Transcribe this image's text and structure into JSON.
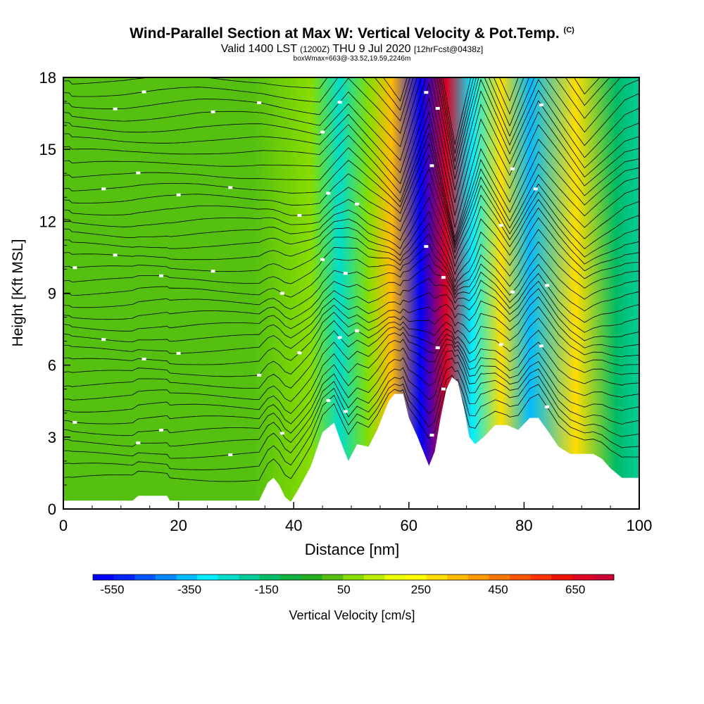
{
  "header": {
    "title": "Wind-Parallel Section at Max W: Vertical Velocity & Pot.Temp.",
    "title_mark": "(C)",
    "subtitle_pre": "Valid 1400 LST",
    "subtitle_utc": "(1200Z)",
    "subtitle_mid": "THU 9 Jul 2020",
    "subtitle_fcst": "[12hrFcst@0438z]",
    "boxline": "boxWmax=663@-33.52,19.59,2246m"
  },
  "chart_data": {
    "type": "heatmap",
    "title": "Wind-Parallel Section at Max W: Vertical Velocity & Pot.Temp.",
    "xlabel": "Distance [nm]",
    "ylabel": "Height [Kft MSL]",
    "xlim": [
      0,
      100
    ],
    "ylim": [
      0,
      18
    ],
    "x_ticks": [
      "0",
      "20",
      "40",
      "60",
      "80",
      "100"
    ],
    "y_ticks": [
      "0",
      "3",
      "6",
      "9",
      "12",
      "15",
      "18"
    ],
    "colorbar": {
      "label": "Vertical Velocity [cm/s]",
      "tick_labels": [
        "-550",
        "-350",
        "-150",
        "50",
        "250",
        "450",
        "650"
      ],
      "min": -600,
      "max": 750,
      "colors": [
        "#0000ff",
        "#0022ff",
        "#0055ff",
        "#0088ff",
        "#00bbff",
        "#00eeff",
        "#00ddcc",
        "#00cc99",
        "#00bb66",
        "#11b140",
        "#22b020",
        "#55c010",
        "#88dd00",
        "#bbee00",
        "#eeff00",
        "#ffff00",
        "#ffdd00",
        "#ffbb00",
        "#ff9900",
        "#ff7700",
        "#ff5500",
        "#ff3300",
        "#ee1100",
        "#dd0022",
        "#cc0033"
      ]
    },
    "vertical_velocity_bands": [
      {
        "x": 0,
        "w": 30
      },
      {
        "x": 9,
        "w": 40
      },
      {
        "x": 22,
        "w": 10
      },
      {
        "x": 33,
        "w": 20
      },
      {
        "x": 43,
        "w": 90
      },
      {
        "x": 48,
        "w": -240
      },
      {
        "x": 53,
        "w": 60
      },
      {
        "x": 57,
        "w": 320
      },
      {
        "x": 62,
        "w": -560
      },
      {
        "x": 66.5,
        "w": 663
      },
      {
        "x": 71,
        "w": -300
      },
      {
        "x": 76,
        "w": 300
      },
      {
        "x": 81,
        "w": -350
      },
      {
        "x": 89,
        "w": 280
      },
      {
        "x": 96,
        "w": -120
      },
      {
        "x": 100,
        "w": -200
      }
    ],
    "terrain": [
      {
        "x": 0,
        "kft": 0.35
      },
      {
        "x": 12,
        "kft": 0.35
      },
      {
        "x": 13,
        "kft": 0.55
      },
      {
        "x": 18,
        "kft": 0.55
      },
      {
        "x": 18.5,
        "kft": 0.35
      },
      {
        "x": 34,
        "kft": 0.35
      },
      {
        "x": 35.5,
        "kft": 1.1
      },
      {
        "x": 36.5,
        "kft": 1.3
      },
      {
        "x": 37.5,
        "kft": 1.0
      },
      {
        "x": 38.5,
        "kft": 0.5
      },
      {
        "x": 39.5,
        "kft": 0.3
      },
      {
        "x": 41,
        "kft": 0.9
      },
      {
        "x": 43,
        "kft": 1.8
      },
      {
        "x": 45,
        "kft": 3.2
      },
      {
        "x": 47,
        "kft": 3.6
      },
      {
        "x": 48.5,
        "kft": 2.6
      },
      {
        "x": 49.5,
        "kft": 2.0
      },
      {
        "x": 51,
        "kft": 2.7
      },
      {
        "x": 53,
        "kft": 2.6
      },
      {
        "x": 54.5,
        "kft": 3.3
      },
      {
        "x": 56.5,
        "kft": 4.5
      },
      {
        "x": 57.5,
        "kft": 4.8
      },
      {
        "x": 59,
        "kft": 4.8
      },
      {
        "x": 60,
        "kft": 3.8
      },
      {
        "x": 61.5,
        "kft": 3.0
      },
      {
        "x": 62.5,
        "kft": 2.4
      },
      {
        "x": 63.5,
        "kft": 1.8
      },
      {
        "x": 64.5,
        "kft": 2.4
      },
      {
        "x": 65.5,
        "kft": 3.8
      },
      {
        "x": 66.5,
        "kft": 5.0
      },
      {
        "x": 67.5,
        "kft": 5.5
      },
      {
        "x": 68.5,
        "kft": 5.3
      },
      {
        "x": 69.5,
        "kft": 4.3
      },
      {
        "x": 70.5,
        "kft": 3.0
      },
      {
        "x": 71.5,
        "kft": 2.7
      },
      {
        "x": 73,
        "kft": 3.0
      },
      {
        "x": 75,
        "kft": 3.5
      },
      {
        "x": 77,
        "kft": 3.5
      },
      {
        "x": 79,
        "kft": 3.3
      },
      {
        "x": 81,
        "kft": 3.8
      },
      {
        "x": 82.5,
        "kft": 3.8
      },
      {
        "x": 84,
        "kft": 3.3
      },
      {
        "x": 86,
        "kft": 2.6
      },
      {
        "x": 88,
        "kft": 2.3
      },
      {
        "x": 90,
        "kft": 2.3
      },
      {
        "x": 92,
        "kft": 2.3
      },
      {
        "x": 93.5,
        "kft": 2.1
      },
      {
        "x": 95,
        "kft": 1.7
      },
      {
        "x": 97,
        "kft": 1.3
      },
      {
        "x": 100,
        "kft": 1.3
      }
    ],
    "potential_temperature_contours": {
      "count": 36,
      "interval_kft": 0.5,
      "lowest_kft": 1.0,
      "color": "#000000"
    },
    "contour_label_count": 54
  }
}
